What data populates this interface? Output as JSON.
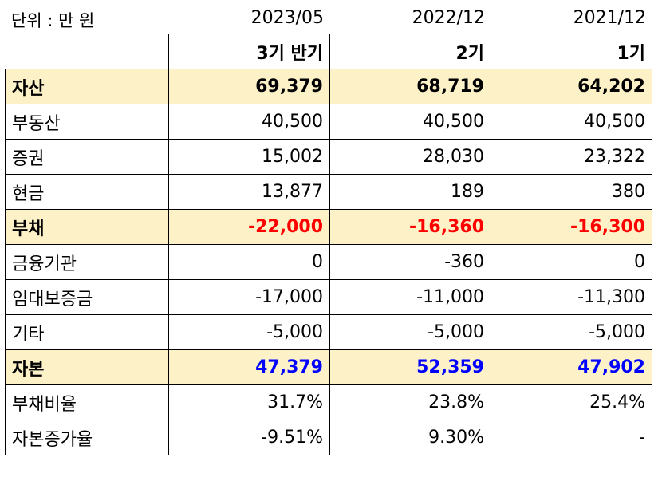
{
  "header": {
    "unit": "단위 : 만 원",
    "dates": [
      "2023/05",
      "2022/12",
      "2021/12"
    ],
    "periods": [
      "3기 반기",
      "2기",
      "1기"
    ]
  },
  "rows": [
    {
      "label": "자산",
      "section": true,
      "values": [
        "69,379",
        "68,719",
        "64,202"
      ]
    },
    {
      "label": "부동산",
      "values": [
        "40,500",
        "40,500",
        "40,500"
      ]
    },
    {
      "label": "증권",
      "values": [
        "15,002",
        "28,030",
        "23,322"
      ]
    },
    {
      "label": "현금",
      "values": [
        "13,877",
        "189",
        "380"
      ]
    },
    {
      "label": "부채",
      "section": true,
      "values": [
        "-22,000",
        "-16,360",
        "-16,300"
      ]
    },
    {
      "label": "금융기관",
      "values": [
        "0",
        "-360",
        "0"
      ]
    },
    {
      "label": "임대보증금",
      "values": [
        "-17,000",
        "-11,000",
        "-11,300"
      ]
    },
    {
      "label": "기타",
      "values": [
        "-5,000",
        "-5,000",
        "-5,000"
      ]
    },
    {
      "label": "자본",
      "section": true,
      "values": [
        "47,379",
        "52,359",
        "47,902"
      ]
    },
    {
      "label": "부채비율",
      "values": [
        "31.7%",
        "23.8%",
        "25.4%"
      ]
    },
    {
      "label": "자본증가율",
      "values": [
        "-9.51%",
        "9.30%",
        "-"
      ]
    }
  ],
  "colors": {
    "section_bg": "#fdf1c8",
    "negative": "#ff0000",
    "equity": "#0000ff"
  }
}
